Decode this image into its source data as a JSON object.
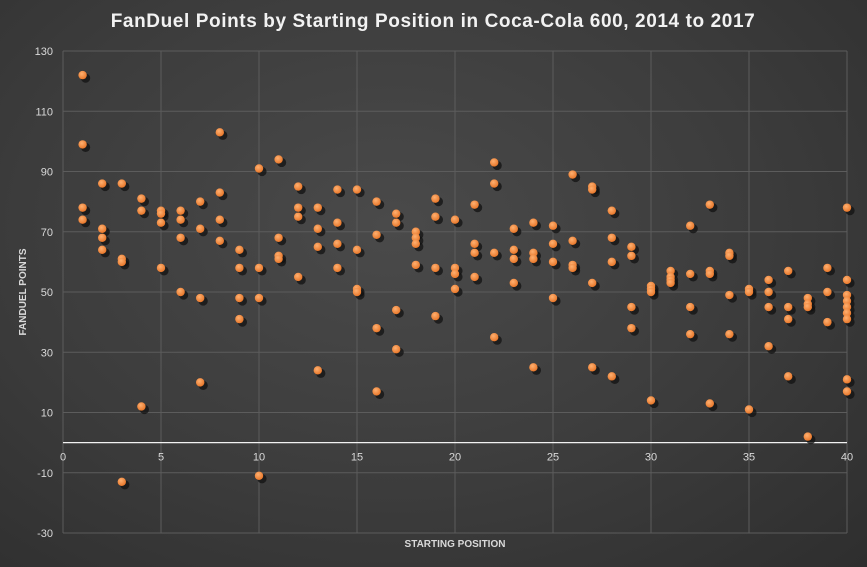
{
  "chart_data": {
    "type": "scatter",
    "title": "FanDuel Points by Starting Position in Coca-Cola 600, 2014 to 2017",
    "xlabel": "STARTING POSITION",
    "ylabel": "FANDUEL POINTS",
    "xlim": [
      0,
      40
    ],
    "ylim": [
      -30,
      130
    ],
    "xticks": [
      0,
      5,
      10,
      15,
      20,
      25,
      30,
      35,
      40
    ],
    "yticks": [
      -30,
      -10,
      10,
      30,
      50,
      70,
      90,
      110,
      130
    ],
    "grid": true,
    "colors": {
      "marker": "#f28a3a",
      "background": "#3f3f3f",
      "grid": "#5c5c5c",
      "zero_line": "#f2f2f2"
    },
    "points": [
      [
        1,
        122
      ],
      [
        1,
        99
      ],
      [
        1,
        78
      ],
      [
        1,
        74
      ],
      [
        2,
        86
      ],
      [
        2,
        71
      ],
      [
        2,
        68
      ],
      [
        2,
        64
      ],
      [
        3,
        86
      ],
      [
        3,
        61
      ],
      [
        3,
        60
      ],
      [
        3,
        -13
      ],
      [
        4,
        81
      ],
      [
        4,
        77
      ],
      [
        4,
        12
      ],
      [
        5,
        77
      ],
      [
        5,
        76
      ],
      [
        5,
        73
      ],
      [
        5,
        58
      ],
      [
        6,
        77
      ],
      [
        6,
        74
      ],
      [
        6,
        68
      ],
      [
        6,
        50
      ],
      [
        7,
        80
      ],
      [
        7,
        71
      ],
      [
        7,
        48
      ],
      [
        7,
        20
      ],
      [
        8,
        103
      ],
      [
        8,
        83
      ],
      [
        8,
        74
      ],
      [
        8,
        67
      ],
      [
        9,
        64
      ],
      [
        9,
        58
      ],
      [
        9,
        48
      ],
      [
        9,
        41
      ],
      [
        10,
        91
      ],
      [
        10,
        58
      ],
      [
        10,
        48
      ],
      [
        10,
        -11
      ],
      [
        11,
        94
      ],
      [
        11,
        68
      ],
      [
        11,
        62
      ],
      [
        11,
        61
      ],
      [
        12,
        85
      ],
      [
        12,
        78
      ],
      [
        12,
        75
      ],
      [
        12,
        55
      ],
      [
        13,
        78
      ],
      [
        13,
        71
      ],
      [
        13,
        65
      ],
      [
        13,
        24
      ],
      [
        14,
        84
      ],
      [
        14,
        73
      ],
      [
        14,
        66
      ],
      [
        14,
        58
      ],
      [
        15,
        84
      ],
      [
        15,
        64
      ],
      [
        15,
        51
      ],
      [
        15,
        50
      ],
      [
        16,
        80
      ],
      [
        16,
        69
      ],
      [
        16,
        38
      ],
      [
        16,
        17
      ],
      [
        17,
        76
      ],
      [
        17,
        73
      ],
      [
        17,
        44
      ],
      [
        17,
        31
      ],
      [
        18,
        70
      ],
      [
        18,
        68
      ],
      [
        18,
        66
      ],
      [
        18,
        59
      ],
      [
        19,
        81
      ],
      [
        19,
        75
      ],
      [
        19,
        58
      ],
      [
        19,
        42
      ],
      [
        20,
        74
      ],
      [
        20,
        58
      ],
      [
        20,
        56
      ],
      [
        20,
        51
      ],
      [
        21,
        79
      ],
      [
        21,
        66
      ],
      [
        21,
        63
      ],
      [
        21,
        55
      ],
      [
        22,
        93
      ],
      [
        22,
        86
      ],
      [
        22,
        63
      ],
      [
        22,
        35
      ],
      [
        23,
        71
      ],
      [
        23,
        64
      ],
      [
        23,
        61
      ],
      [
        23,
        53
      ],
      [
        24,
        73
      ],
      [
        24,
        63
      ],
      [
        24,
        61
      ],
      [
        24,
        25
      ],
      [
        25,
        72
      ],
      [
        25,
        66
      ],
      [
        25,
        60
      ],
      [
        25,
        48
      ],
      [
        26,
        89
      ],
      [
        26,
        67
      ],
      [
        26,
        59
      ],
      [
        26,
        58
      ],
      [
        27,
        85
      ],
      [
        27,
        84
      ],
      [
        27,
        53
      ],
      [
        27,
        25
      ],
      [
        28,
        77
      ],
      [
        28,
        68
      ],
      [
        28,
        60
      ],
      [
        28,
        22
      ],
      [
        29,
        65
      ],
      [
        29,
        62
      ],
      [
        29,
        45
      ],
      [
        29,
        38
      ],
      [
        30,
        52
      ],
      [
        30,
        51
      ],
      [
        30,
        50
      ],
      [
        30,
        14
      ],
      [
        31,
        57
      ],
      [
        31,
        55
      ],
      [
        31,
        54
      ],
      [
        31,
        53
      ],
      [
        32,
        72
      ],
      [
        32,
        56
      ],
      [
        32,
        45
      ],
      [
        32,
        36
      ],
      [
        33,
        79
      ],
      [
        33,
        57
      ],
      [
        33,
        56
      ],
      [
        33,
        13
      ],
      [
        34,
        63
      ],
      [
        34,
        62
      ],
      [
        34,
        49
      ],
      [
        34,
        36
      ],
      [
        35,
        51
      ],
      [
        35,
        50
      ],
      [
        35,
        11
      ],
      [
        36,
        54
      ],
      [
        36,
        50
      ],
      [
        36,
        45
      ],
      [
        36,
        32
      ],
      [
        37,
        57
      ],
      [
        37,
        45
      ],
      [
        37,
        41
      ],
      [
        37,
        22
      ],
      [
        38,
        48
      ],
      [
        38,
        46
      ],
      [
        38,
        45
      ],
      [
        38,
        2
      ],
      [
        39,
        58
      ],
      [
        39,
        50
      ],
      [
        39,
        40
      ],
      [
        40,
        78
      ],
      [
        40,
        54
      ],
      [
        40,
        49
      ],
      [
        40,
        47
      ],
      [
        40,
        45
      ],
      [
        40,
        43
      ],
      [
        40,
        41
      ],
      [
        40,
        21
      ],
      [
        40,
        17
      ]
    ]
  }
}
